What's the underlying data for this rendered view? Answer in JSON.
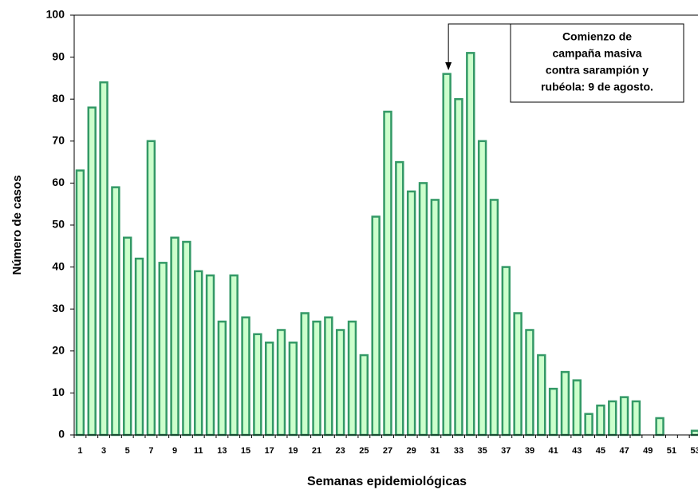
{
  "chart_data": {
    "type": "bar",
    "x_label": "Semanas epidemiológicas",
    "y_label": "Número de casos",
    "annotation": [
      "Comienzo de",
      "campaña masiva",
      "contra sarampión y",
      "rubéola: 9 de agosto."
    ],
    "categories": [
      "1",
      null,
      "3",
      null,
      "5",
      null,
      "7",
      null,
      "9",
      null,
      "11",
      null,
      "13",
      null,
      "15",
      null,
      "17",
      null,
      "19",
      null,
      "21",
      null,
      "23",
      null,
      "25",
      null,
      "27",
      null,
      "29",
      null,
      "31",
      null,
      "33",
      null,
      "35",
      null,
      "37",
      null,
      "39",
      null,
      "41",
      null,
      "43",
      null,
      "45",
      null,
      "47",
      null,
      "49",
      null,
      "51",
      null,
      "53"
    ],
    "values": [
      63,
      78,
      84,
      59,
      47,
      42,
      70,
      41,
      47,
      46,
      39,
      38,
      27,
      38,
      28,
      24,
      22,
      25,
      22,
      29,
      27,
      28,
      25,
      27,
      19,
      52,
      77,
      65,
      58,
      60,
      56,
      86,
      80,
      91,
      70,
      56,
      40,
      29,
      25,
      19,
      11,
      15,
      13,
      5,
      7,
      8,
      9,
      8,
      0,
      4,
      0,
      0,
      1
    ],
    "color": "#ccffcc",
    "edge_color": "#339966",
    "ylim": [
      0,
      100
    ],
    "yticks": [
      0,
      10,
      20,
      30,
      40,
      50,
      60,
      70,
      80,
      90,
      100
    ],
    "grid": false
  }
}
